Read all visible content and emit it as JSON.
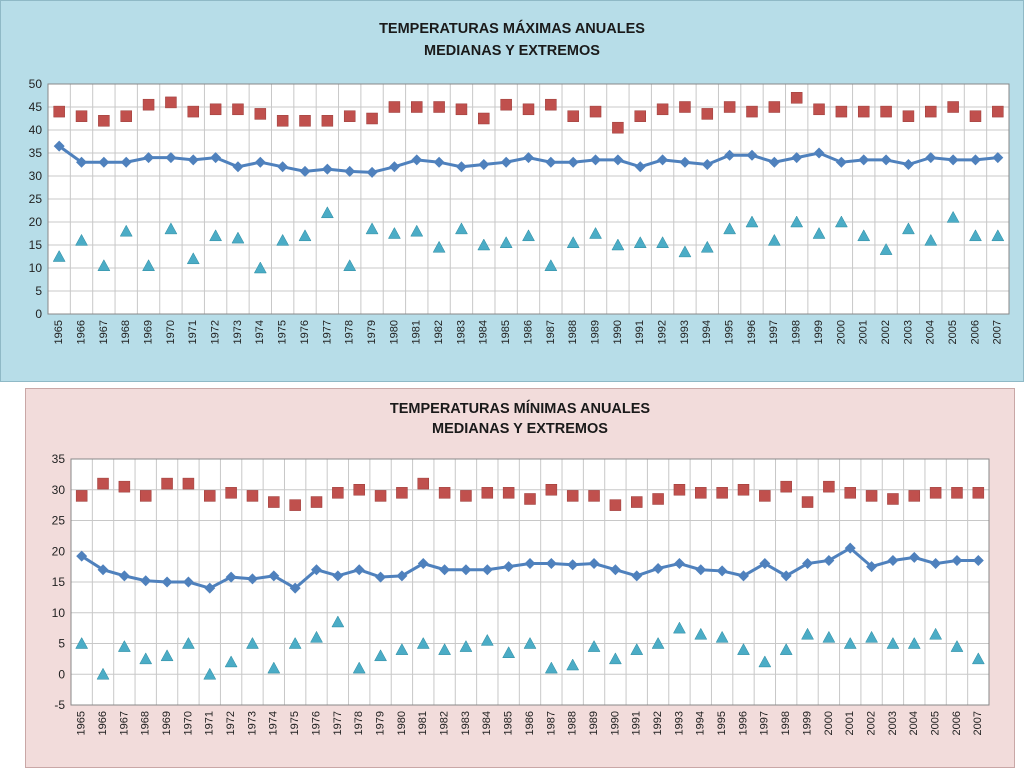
{
  "chart_data": [
    {
      "type": "line",
      "title": "TEMPERATURAS MÁXIMAS ANUALES",
      "subtitle": "MEDIANAS Y EXTREMOS",
      "ylim": [
        0,
        50
      ],
      "yticks": [
        "0",
        "5",
        "10",
        "15",
        "20",
        "25",
        "30",
        "35",
        "40",
        "45",
        "50"
      ],
      "grid": true,
      "categories": [
        "1965",
        "1966",
        "1967",
        "1968",
        "1969",
        "1970",
        "1971",
        "1972",
        "1973",
        "1974",
        "1975",
        "1976",
        "1977",
        "1978",
        "1979",
        "1980",
        "1981",
        "1982",
        "1983",
        "1984",
        "1985",
        "1986",
        "1987",
        "1988",
        "1989",
        "1990",
        "1991",
        "1992",
        "1993",
        "1994",
        "1995",
        "1996",
        "1997",
        "1998",
        "1999",
        "2000",
        "2001",
        "2002",
        "2003",
        "2004",
        "2005",
        "2006",
        "2007"
      ],
      "series": [
        {
          "kind": "max",
          "marker": "square",
          "color": "#c0504d",
          "values": [
            44,
            43,
            42,
            43,
            45.5,
            46,
            44,
            44.5,
            44.5,
            43.5,
            42,
            42,
            42,
            43,
            42.5,
            45,
            45,
            45,
            44.5,
            42.5,
            45.5,
            44.5,
            45.5,
            43,
            44,
            40.5,
            43,
            44.5,
            45,
            43.5,
            45,
            44,
            45,
            47,
            44.5,
            44,
            44,
            44,
            43,
            44,
            45,
            43,
            44
          ]
        },
        {
          "kind": "median",
          "marker": "diamond-line",
          "color": "#4f81bd",
          "values": [
            36.5,
            33,
            33,
            33,
            34,
            34,
            33.5,
            34,
            32,
            33,
            32,
            31,
            31.5,
            31,
            30.8,
            32,
            33.5,
            33,
            32,
            32.5,
            33,
            34,
            33,
            33,
            33.5,
            33.5,
            32,
            33.5,
            33,
            32.5,
            34.5,
            34.5,
            33,
            34,
            35,
            33,
            33.5,
            33.5,
            32.5,
            34,
            33.5,
            33.5,
            34
          ]
        },
        {
          "kind": "min",
          "marker": "triangle",
          "color": "#4bacc6",
          "values": [
            12.5,
            16,
            10.5,
            18,
            10.5,
            18.5,
            12,
            17,
            16.5,
            10,
            16,
            17,
            22,
            10.5,
            18.5,
            17.5,
            18,
            14.5,
            18.5,
            15,
            15.5,
            17,
            10.5,
            15.5,
            17.5,
            15,
            15.5,
            15.5,
            13.5,
            14.5,
            18.5,
            20,
            16,
            20,
            17.5,
            20,
            17,
            14,
            18.5,
            16,
            21,
            17,
            17
          ]
        }
      ]
    },
    {
      "type": "line",
      "title": "TEMPERATURAS MÍNIMAS ANUALES",
      "subtitle": "MEDIANAS Y EXTREMOS",
      "ylim": [
        -5,
        35
      ],
      "yticks": [
        "-5",
        "0",
        "5",
        "10",
        "15",
        "20",
        "25",
        "30",
        "35"
      ],
      "grid": true,
      "categories": [
        "1965",
        "1966",
        "1967",
        "1968",
        "1969",
        "1970",
        "1971",
        "1972",
        "1973",
        "1974",
        "1975",
        "1976",
        "1977",
        "1978",
        "1979",
        "1980",
        "1981",
        "1982",
        "1983",
        "1984",
        "1985",
        "1986",
        "1987",
        "1988",
        "1989",
        "1990",
        "1991",
        "1992",
        "1993",
        "1994",
        "1995",
        "1996",
        "1997",
        "1998",
        "1999",
        "2000",
        "2001",
        "2002",
        "2003",
        "2004",
        "2005",
        "2006",
        "2007"
      ],
      "series": [
        {
          "kind": "max",
          "marker": "square",
          "color": "#c0504d",
          "values": [
            29,
            31,
            30.5,
            29,
            31,
            31,
            29,
            29.5,
            29,
            28,
            27.5,
            28,
            29.5,
            30,
            29,
            29.5,
            31,
            29.5,
            29,
            29.5,
            29.5,
            28.5,
            30,
            29,
            29,
            27.5,
            28,
            28.5,
            30,
            29.5,
            29.5,
            30,
            29,
            30.5,
            28,
            30.5,
            29.5,
            29,
            28.5,
            29,
            29.5,
            29.5,
            29.5
          ]
        },
        {
          "kind": "median",
          "marker": "diamond-line",
          "color": "#4f81bd",
          "values": [
            19.2,
            17,
            16,
            15.2,
            15,
            15,
            14,
            15.8,
            15.5,
            16,
            14,
            17,
            16,
            17,
            15.8,
            16,
            18,
            17,
            17,
            17,
            17.5,
            18,
            18,
            17.8,
            18,
            17,
            16,
            17.2,
            18,
            17,
            16.8,
            16,
            18,
            16,
            18,
            18.5,
            20.5,
            17.5,
            18.5,
            19,
            18,
            18.5,
            18.5
          ]
        },
        {
          "kind": "min",
          "marker": "triangle",
          "color": "#4bacc6",
          "values": [
            5,
            0,
            4.5,
            2.5,
            3,
            5,
            0,
            2,
            5,
            1,
            5,
            6,
            8.5,
            1,
            3,
            4,
            5,
            4,
            4.5,
            5.5,
            3.5,
            5,
            1,
            1.5,
            4.5,
            2.5,
            4,
            5,
            7.5,
            6.5,
            6,
            4,
            2,
            4,
            6.5,
            6,
            5,
            6,
            5,
            5,
            6.5,
            4.5,
            2.5
          ]
        }
      ]
    }
  ]
}
